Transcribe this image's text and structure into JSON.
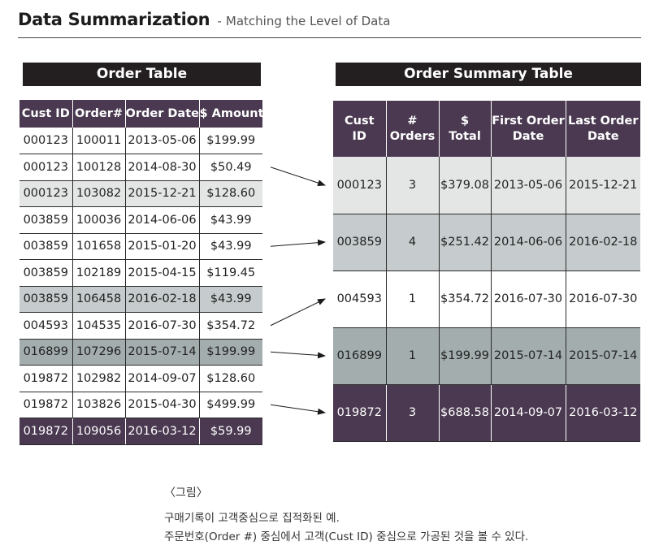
{
  "header": {
    "title": "Data Summarization",
    "separator": "-",
    "subtitle": "Matching the Level of Data"
  },
  "order_table": {
    "title": "Order Table",
    "columns": [
      "Cust ID",
      "Order#",
      "Order Date",
      "$ Amount"
    ],
    "rows": [
      [
        "000123",
        "100011",
        "2013-05-06",
        "$199.99"
      ],
      [
        "000123",
        "100128",
        "2014-08-30",
        "$50.49"
      ],
      [
        "000123",
        "103082",
        "2015-12-21",
        "$128.60"
      ],
      [
        "003859",
        "100036",
        "2014-06-06",
        "$43.99"
      ],
      [
        "003859",
        "101658",
        "2015-01-20",
        "$43.99"
      ],
      [
        "003859",
        "102189",
        "2015-04-15",
        "$119.45"
      ],
      [
        "003859",
        "106458",
        "2016-02-18",
        "$43.99"
      ],
      [
        "004593",
        "104535",
        "2016-07-30",
        "$354.72"
      ],
      [
        "016899",
        "107296",
        "2015-07-14",
        "$199.99"
      ],
      [
        "019872",
        "102982",
        "2014-09-07",
        "$128.60"
      ],
      [
        "019872",
        "103826",
        "2015-04-30",
        "$499.99"
      ],
      [
        "019872",
        "109056",
        "2016-03-12",
        "$59.99"
      ]
    ],
    "row_shading": [
      "white",
      "white",
      "light",
      "white",
      "white",
      "white",
      "mid",
      "white",
      "dark",
      "white",
      "white",
      "purple"
    ]
  },
  "summary_table": {
    "title": "Order Summary Table",
    "columns": [
      [
        "Cust",
        "ID"
      ],
      [
        "#",
        "Orders"
      ],
      [
        "$",
        "Total"
      ],
      [
        "First Order",
        "Date"
      ],
      [
        "Last Order",
        "Date"
      ]
    ],
    "rows": [
      [
        "000123",
        "3",
        "$379.08",
        "2013-05-06",
        "2015-12-21"
      ],
      [
        "003859",
        "4",
        "$251.42",
        "2014-06-06",
        "2016-02-18"
      ],
      [
        "004593",
        "1",
        "$354.72",
        "2016-07-30",
        "2016-07-30"
      ],
      [
        "016899",
        "1",
        "$199.99",
        "2015-07-14",
        "2015-07-14"
      ],
      [
        "019872",
        "3",
        "$688.58",
        "2014-09-07",
        "2016-03-12"
      ]
    ],
    "row_shading": [
      "light",
      "mid",
      "white",
      "dark",
      "purple"
    ]
  },
  "arrows": [
    {
      "from_order_row": 1,
      "to_summary_row": 0
    },
    {
      "from_order_row": 4,
      "to_summary_row": 1
    },
    {
      "from_order_row": 7,
      "to_summary_row": 2
    },
    {
      "from_order_row": 8,
      "to_summary_row": 3
    },
    {
      "from_order_row": 10,
      "to_summary_row": 4
    }
  ],
  "caption": {
    "figure_label": "〈그림〉",
    "line1": "구매기록이 고객중심으로 집적화된 예.",
    "line2": "주문번호(Order #) 중심에서 고객(Cust ID) 중심으로 가공된 것을 볼 수 있다."
  },
  "colors": {
    "header_purple": "#4a3950",
    "title_bar": "#231f20",
    "shade_light": "#e4e5e5",
    "shade_mid": "#c6cccd",
    "shade_dark": "#a4adae"
  }
}
